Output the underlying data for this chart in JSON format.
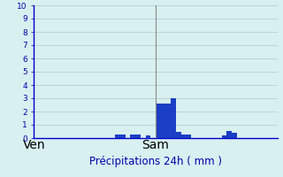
{
  "title": "Précipitations 24h ( mm )",
  "background_color": "#d8f0f0",
  "bar_color": "#1a3fc4",
  "grid_color": "#b0c8c8",
  "axis_color": "#0000cc",
  "text_color": "#0000aa",
  "ylim": [
    0,
    10
  ],
  "yticks": [
    0,
    1,
    2,
    3,
    4,
    5,
    6,
    7,
    8,
    9,
    10
  ],
  "n_bars": 48,
  "day_labels": [
    {
      "label": "Ven",
      "x": 0
    },
    {
      "label": "Sam",
      "x": 24
    }
  ],
  "day_line_x": 24,
  "bar_values": [
    0,
    0,
    0,
    0,
    0,
    0,
    0,
    0,
    0,
    0,
    0,
    0,
    0,
    0,
    0,
    0,
    0.3,
    0.3,
    0,
    0.3,
    0.3,
    0,
    0.2,
    0,
    2.6,
    2.6,
    2.6,
    3.0,
    0.5,
    0.3,
    0.25,
    0,
    0,
    0,
    0,
    0,
    0,
    0.2,
    0.55,
    0.4,
    0,
    0,
    0,
    0,
    0,
    0,
    0,
    0
  ],
  "xlim": [
    0,
    48
  ],
  "title_fontsize": 8.5,
  "tick_fontsize": 6.5,
  "label_fontsize": 7.5
}
